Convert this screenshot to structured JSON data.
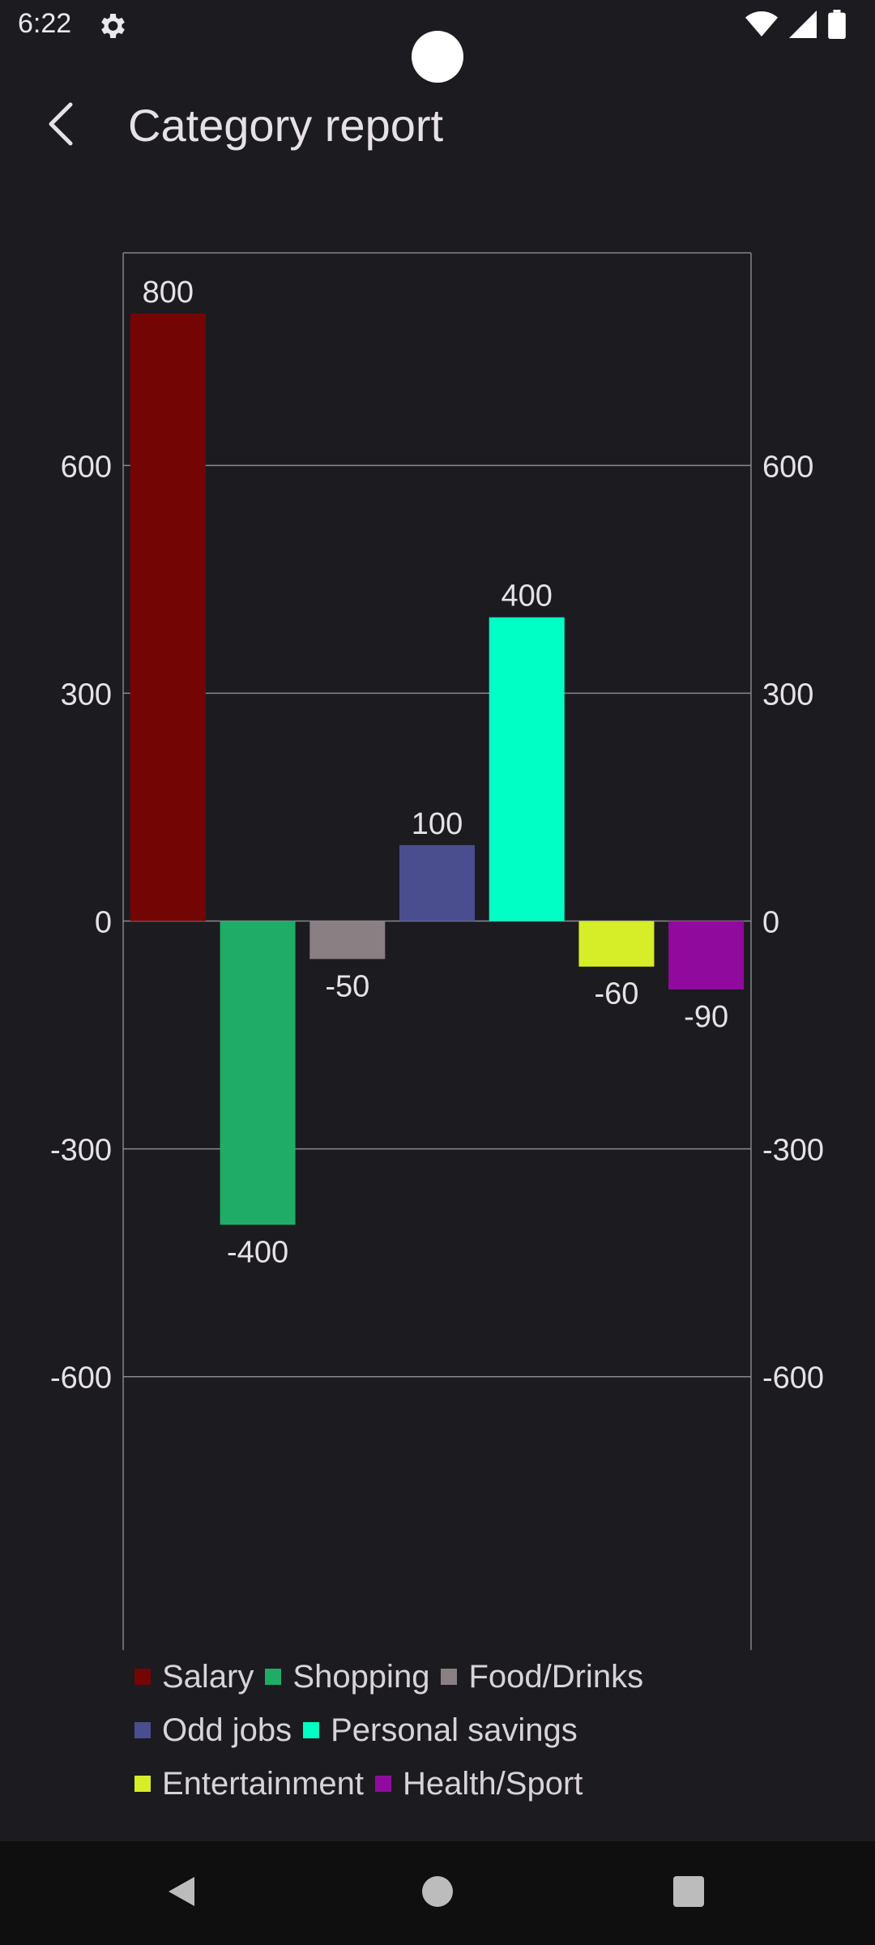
{
  "status_bar": {
    "time": "6:22",
    "icons": [
      "gear-icon",
      "wifi-icon",
      "signal-icon",
      "battery-icon"
    ]
  },
  "app_bar": {
    "title": "Category report",
    "back_icon": "chevron-left-icon"
  },
  "chart_data": {
    "type": "bar",
    "title": "",
    "xlabel": "",
    "ylabel": "",
    "ylim": [
      -960,
      880
    ],
    "yticks": [
      -600,
      -300,
      0,
      300,
      600
    ],
    "y_axis_left": true,
    "y_axis_right": true,
    "grid": true,
    "legend_placement": "bottom",
    "categories": [
      "Salary",
      "Shopping",
      "Food/Drinks",
      "Odd jobs",
      "Personal savings",
      "Entertainment",
      "Health/Sport"
    ],
    "values": [
      800,
      -400,
      -50,
      100,
      400,
      -60,
      -90
    ],
    "data_labels": [
      "800",
      "-400",
      "-50",
      "100",
      "400",
      "-60",
      "-90"
    ],
    "colors": [
      "#740505",
      "#1fac67",
      "#8a7f83",
      "#4a4e8e",
      "#00ffc4",
      "#d5ee28",
      "#910a9e"
    ]
  },
  "legend": {
    "rows": [
      [
        {
          "label": "Salary",
          "color": "#740505"
        },
        {
          "label": "Shopping",
          "color": "#1fac67"
        },
        {
          "label": "Food/Drinks",
          "color": "#8a7f83"
        }
      ],
      [
        {
          "label": "Odd jobs",
          "color": "#4a4e8e"
        },
        {
          "label": "Personal savings",
          "color": "#00ffc4"
        }
      ],
      [
        {
          "label": "Entertainment",
          "color": "#d5ee28"
        },
        {
          "label": "Health/Sport",
          "color": "#910a9e"
        }
      ]
    ]
  },
  "nav_bar": {
    "icons": [
      "back-triangle-icon",
      "home-circle-icon",
      "recents-square-icon"
    ]
  },
  "colors": {
    "background": "#1c1b20",
    "text": "#e6e1e8",
    "grid": "#8a8890",
    "nav_background": "#0f0f10"
  }
}
